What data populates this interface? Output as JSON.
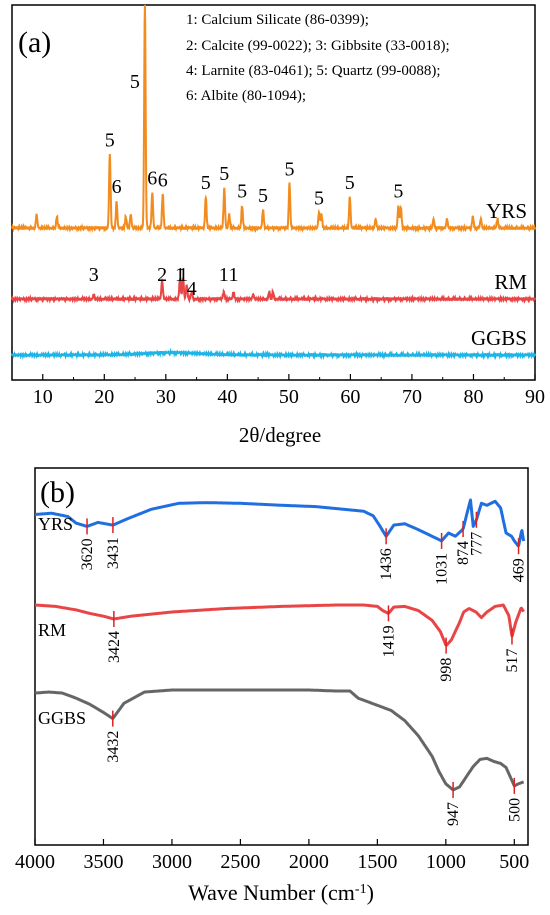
{
  "chart_data": [
    {
      "panel": "(a)",
      "type": "line",
      "xlabel": "2θ/degree",
      "ylabel": "",
      "xlim": [
        5,
        90
      ],
      "xticks": [
        10,
        20,
        30,
        40,
        50,
        60,
        70,
        80,
        90
      ],
      "grid": false,
      "legend": {
        "placement": "top-right",
        "lines": [
          "1: Calcium Silicate (86-0399);",
          "2: Calcite (99-0022); 3: Gibbsite (33-0018);",
          "4: Larnite (83-0461); 5: Quartz (99-0088);",
          "6: Albite (80-1094);"
        ]
      },
      "series": [
        {
          "name": "YRS",
          "color": "#F28C1E",
          "peaks": [
            [
              9,
              0.06
            ],
            [
              12.3,
              0.05
            ],
            [
              20.9,
              0.33
            ],
            [
              22,
              0.12
            ],
            [
              23.5,
              0.05
            ],
            [
              24.3,
              0.06
            ],
            [
              26.6,
              1.0
            ],
            [
              27.8,
              0.16
            ],
            [
              29.5,
              0.15
            ],
            [
              36.5,
              0.14
            ],
            [
              39.5,
              0.18
            ],
            [
              40.3,
              0.06
            ],
            [
              42.4,
              0.1
            ],
            [
              45.8,
              0.08
            ],
            [
              50.1,
              0.2
            ],
            [
              54.9,
              0.07
            ],
            [
              55.3,
              0.06
            ],
            [
              59.9,
              0.14
            ],
            [
              64.1,
              0.04
            ],
            [
              67.8,
              0.1
            ],
            [
              68.2,
              0.09
            ],
            [
              73.5,
              0.04
            ],
            [
              75.7,
              0.04
            ],
            [
              79.9,
              0.05
            ],
            [
              81.2,
              0.04
            ],
            [
              83.9,
              0.04
            ]
          ],
          "labels": [
            {
              "text": "5",
              "x": 26.6,
              "y": 1.0
            },
            {
              "text": "5",
              "x": 20.9,
              "y": 0.33
            },
            {
              "text": "6",
              "x": 22.0,
              "y": 0.12
            },
            {
              "text": "6",
              "x": 27.8,
              "y": 0.16
            },
            {
              "text": "6",
              "x": 29.5,
              "y": 0.15
            },
            {
              "text": "5",
              "x": 36.5,
              "y": 0.14
            },
            {
              "text": "5",
              "x": 39.5,
              "y": 0.18
            },
            {
              "text": "5",
              "x": 42.4,
              "y": 0.1
            },
            {
              "text": "5",
              "x": 45.8,
              "y": 0.08
            },
            {
              "text": "5",
              "x": 50.1,
              "y": 0.2
            },
            {
              "text": "5",
              "x": 54.9,
              "y": 0.07
            },
            {
              "text": "5",
              "x": 59.9,
              "y": 0.14
            },
            {
              "text": "5",
              "x": 67.8,
              "y": 0.1
            }
          ]
        },
        {
          "name": "RM",
          "color": "#E84646",
          "peaks": [
            [
              18.3,
              0.02
            ],
            [
              29.4,
              0.08
            ],
            [
              32.3,
              0.09
            ],
            [
              32.8,
              0.09
            ],
            [
              33.4,
              0.06
            ],
            [
              34.2,
              0.03
            ],
            [
              39.4,
              0.03
            ],
            [
              41,
              0.03
            ],
            [
              44.2,
              0.02
            ],
            [
              46.8,
              0.03
            ],
            [
              47.4,
              0.03
            ]
          ],
          "labels": [
            {
              "text": "3",
              "x": 18.3,
              "y": 0.02
            },
            {
              "text": "2",
              "x": 29.4,
              "y": 0.08
            },
            {
              "text": "1",
              "x": 32.3,
              "y": 0.09
            },
            {
              "text": "1",
              "x": 32.8,
              "y": 0.09
            },
            {
              "text": "4",
              "x": 34.2,
              "y": 0.03
            },
            {
              "text": "1",
              "x": 39.4,
              "y": 0.03
            },
            {
              "text": "1",
              "x": 41.0,
              "y": 0.03
            }
          ]
        },
        {
          "name": "GGBS",
          "color": "#1EB4E6",
          "peaks": [],
          "hump": {
            "center": 31,
            "height": 0.01
          }
        }
      ]
    },
    {
      "panel": "(b)",
      "type": "line",
      "xlabel": "Wave Number (cm⁻¹)",
      "xlabel_main": "Wave Number (cm",
      "xlabel_sup": "-1",
      "xlabel_end": ")",
      "ylabel": "",
      "xlim": [
        4000,
        400
      ],
      "xticks": [
        4000,
        3500,
        3000,
        2500,
        2000,
        1500,
        1000,
        500
      ],
      "grid": false,
      "series": [
        {
          "name": "YRS",
          "color": "#1F6FE0",
          "x": [
            4000,
            3880,
            3760,
            3700,
            3620,
            3540,
            3431,
            3320,
            3150,
            2950,
            2750,
            2500,
            2200,
            1950,
            1750,
            1600,
            1530,
            1480,
            1436,
            1380,
            1300,
            1200,
            1100,
            1031,
            980,
            930,
            874,
            845,
            820,
            800,
            777,
            740,
            700,
            640,
            600,
            560,
            520,
            500,
            469,
            445,
            430
          ],
          "y": [
            0.78,
            0.8,
            0.75,
            0.65,
            0.6,
            0.66,
            0.62,
            0.72,
            0.86,
            0.95,
            0.96,
            0.95,
            0.92,
            0.9,
            0.86,
            0.83,
            0.76,
            0.6,
            0.45,
            0.62,
            0.64,
            0.55,
            0.45,
            0.38,
            0.5,
            0.45,
            0.56,
            0.8,
            1.0,
            0.6,
            0.7,
            0.95,
            0.92,
            0.98,
            0.88,
            0.5,
            0.45,
            0.38,
            0.3,
            0.55,
            0.35
          ],
          "labels": [
            {
              "text": "3620",
              "x": 3620
            },
            {
              "text": "3431",
              "x": 3431
            },
            {
              "text": "1436",
              "x": 1436
            },
            {
              "text": "1031",
              "x": 1031
            },
            {
              "text": "874",
              "x": 874
            },
            {
              "text": "777",
              "x": 777
            },
            {
              "text": "469",
              "x": 469
            }
          ]
        },
        {
          "name": "RM",
          "color": "#E84646",
          "x": [
            4000,
            3850,
            3700,
            3600,
            3500,
            3424,
            3300,
            3000,
            2600,
            2200,
            1800,
            1600,
            1500,
            1460,
            1419,
            1380,
            1300,
            1200,
            1100,
            1040,
            998,
            960,
            900,
            870,
            830,
            780,
            740,
            700,
            640,
            580,
            540,
            517,
            490,
            450,
            430
          ],
          "y": [
            1.0,
            0.98,
            0.93,
            0.88,
            0.84,
            0.8,
            0.84,
            0.9,
            0.95,
            0.98,
            1.0,
            1.0,
            0.98,
            0.92,
            0.88,
            0.97,
            0.98,
            0.92,
            0.78,
            0.62,
            0.42,
            0.5,
            0.75,
            0.9,
            0.95,
            0.9,
            0.82,
            0.9,
            0.98,
            1.0,
            0.85,
            0.55,
            0.75,
            0.96,
            0.9
          ],
          "labels": [
            {
              "text": "3424",
              "x": 3424
            },
            {
              "text": "1419",
              "x": 1419
            },
            {
              "text": "998",
              "x": 998
            },
            {
              "text": "517",
              "x": 517
            }
          ]
        },
        {
          "name": "GGBS",
          "color": "#666666",
          "x": [
            4000,
            3900,
            3800,
            3700,
            3600,
            3500,
            3432,
            3350,
            3200,
            3000,
            2500,
            2000,
            1800,
            1700,
            1640,
            1600,
            1500,
            1400,
            1300,
            1200,
            1100,
            1050,
            1000,
            947,
            900,
            850,
            800,
            750,
            700,
            650,
            600,
            560,
            520,
            500,
            470,
            430
          ],
          "y": [
            0.97,
            0.98,
            0.97,
            0.92,
            0.86,
            0.78,
            0.72,
            0.87,
            0.98,
            1.0,
            1.0,
            1.0,
            0.99,
            0.99,
            0.92,
            0.9,
            0.85,
            0.8,
            0.7,
            0.55,
            0.35,
            0.2,
            0.08,
            0.02,
            0.05,
            0.15,
            0.25,
            0.32,
            0.33,
            0.3,
            0.28,
            0.24,
            0.12,
            0.06,
            0.08,
            0.1
          ],
          "labels": [
            {
              "text": "3432",
              "x": 3432
            },
            {
              "text": "947",
              "x": 947
            },
            {
              "text": "500",
              "x": 500
            }
          ]
        }
      ]
    }
  ]
}
